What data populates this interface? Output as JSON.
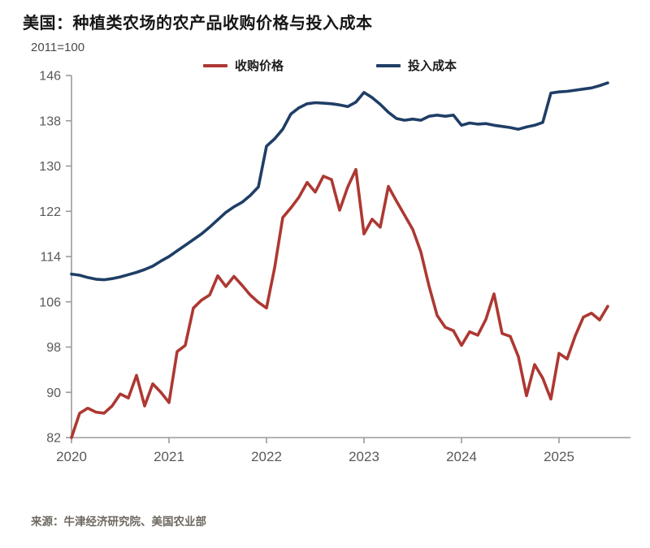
{
  "title": "美国：种植类农场的农产品收购价格与投入成本",
  "units_label": "2011=100",
  "source": "来源：牛津经济研究院、美国农业部",
  "colors": {
    "purchase_price": "#ad3832",
    "input_cost": "#1f3e66",
    "axis": "#9b9b9b",
    "tick_text": "#595959",
    "title_text": "#161616"
  },
  "chart_data": {
    "type": "line",
    "title": "美国：种植类农场的农产品收购价格与投入成本",
    "subtitle": "2011=100",
    "xlabel": "",
    "ylabel": "2011=100",
    "x_start": "2020-01",
    "frequency": "monthly",
    "ylim": [
      82,
      146
    ],
    "yticks": [
      82,
      90,
      98,
      106,
      114,
      122,
      130,
      138,
      146
    ],
    "xticks": [
      2020,
      2021,
      2022,
      2023,
      2024,
      2025
    ],
    "grid": false,
    "legend_position": "top",
    "series": [
      {
        "name": "收购价格",
        "color": "#ad3832",
        "values": [
          82.0,
          86.3,
          87.2,
          86.5,
          86.3,
          87.6,
          89.7,
          89.0,
          93.0,
          87.6,
          91.5,
          90.0,
          88.2,
          97.2,
          98.3,
          104.9,
          106.3,
          107.2,
          110.6,
          108.7,
          110.5,
          108.9,
          107.2,
          105.9,
          104.9,
          112.0,
          120.9,
          122.6,
          124.5,
          127.1,
          125.4,
          128.2,
          127.6,
          122.2,
          126.3,
          129.4,
          118.0,
          120.6,
          119.2,
          126.4,
          123.8,
          121.3,
          118.8,
          114.8,
          108.8,
          103.6,
          101.5,
          100.9,
          98.3,
          100.7,
          100.1,
          102.9,
          107.4,
          100.4,
          99.9,
          96.3,
          89.4,
          94.9,
          92.5,
          88.8,
          96.9,
          95.9,
          100.0,
          103.3,
          104.0,
          102.8,
          105.2
        ]
      },
      {
        "name": "投入成本",
        "color": "#1f3e66",
        "values": [
          110.9,
          110.7,
          110.3,
          110.0,
          109.9,
          110.1,
          110.4,
          110.8,
          111.2,
          111.7,
          112.3,
          113.2,
          114.0,
          115.0,
          116.0,
          117.0,
          118.0,
          119.2,
          120.5,
          121.8,
          122.8,
          123.6,
          124.8,
          126.3,
          133.5,
          134.8,
          136.5,
          139.2,
          140.3,
          141.0,
          141.2,
          141.1,
          141.0,
          140.8,
          140.5,
          141.3,
          143.0,
          142.1,
          140.9,
          139.5,
          138.4,
          138.1,
          138.3,
          138.1,
          138.8,
          139.0,
          138.8,
          139.0,
          137.2,
          137.6,
          137.4,
          137.5,
          137.2,
          137.0,
          136.8,
          136.5,
          136.9,
          137.2,
          137.7,
          142.9,
          143.1,
          143.2,
          143.4,
          143.6,
          143.8,
          144.2,
          144.7
        ]
      }
    ]
  }
}
